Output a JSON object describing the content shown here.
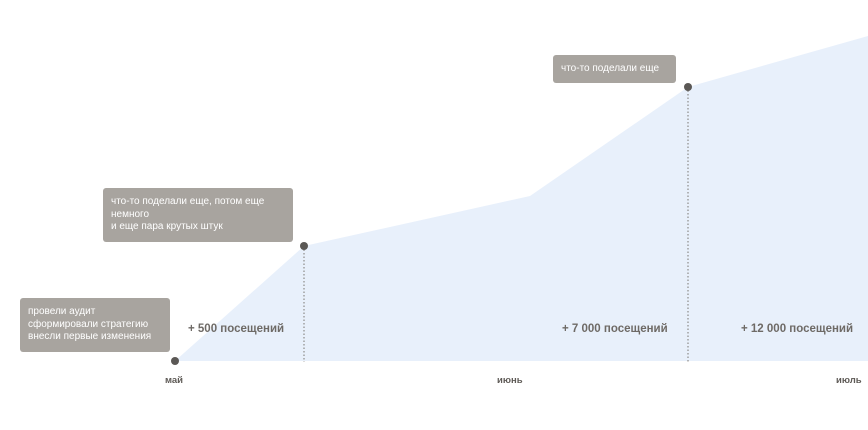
{
  "chart_data": {
    "type": "area",
    "categories": [
      "май",
      "июнь",
      "июль"
    ],
    "colors": {
      "area_fill": "#e8f0fb",
      "marker": "#5b5855",
      "callout_bg": "#a8a49f",
      "callout_text": "#ffffff",
      "label_text": "#6e6a66"
    },
    "milestones": [
      {
        "lines": [
          "провели аудит",
          "сформировали стратегию",
          "внесли первые изменения"
        ]
      },
      {
        "lines": [
          "что-то поделали еще, потом еще",
          "немного",
          "и еще пара крутых штук"
        ]
      },
      {
        "lines": [
          "что-то поделали еще"
        ]
      }
    ],
    "visits": [
      "+ 500 посещений",
      "+ 7 000 посещений",
      "+ 12 000 посещений"
    ]
  }
}
